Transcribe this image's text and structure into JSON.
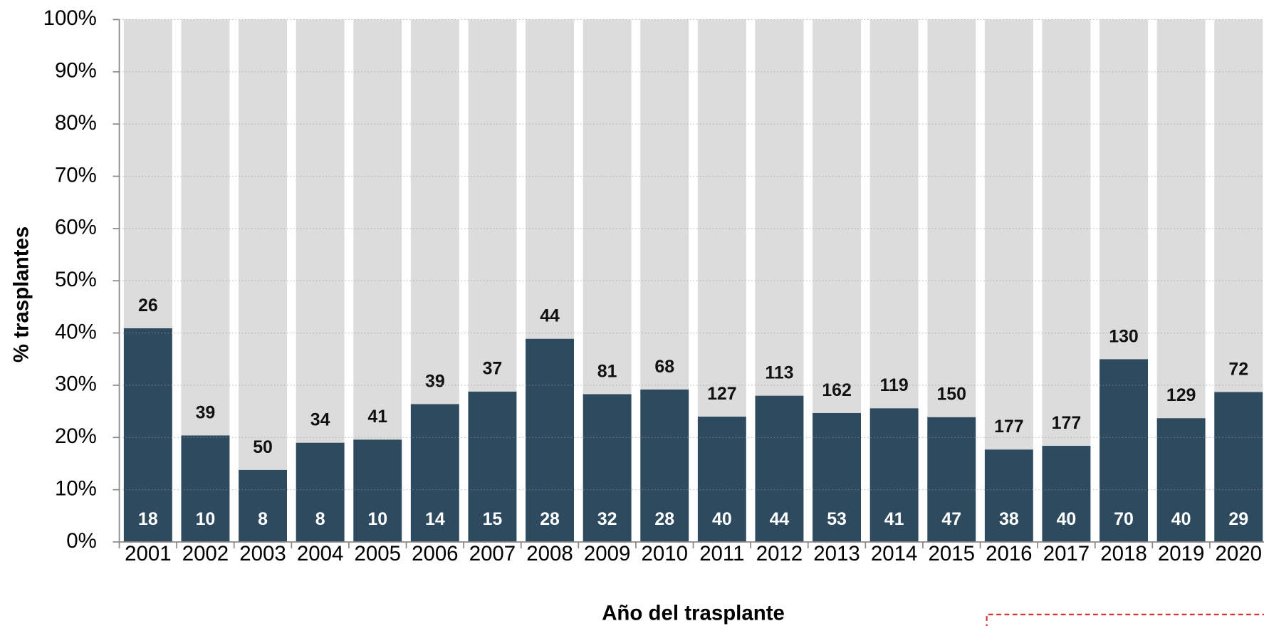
{
  "chart_data": {
    "type": "stacked_bar_100",
    "y_label": "% trasplantes",
    "x_label": "Año del trasplante",
    "categories": [
      "2001",
      "2002",
      "2003",
      "2004",
      "2005",
      "2006",
      "2007",
      "2008",
      "2009",
      "2010",
      "2011",
      "2012",
      "2013",
      "2014",
      "2015",
      "2016",
      "2017",
      "2018",
      "2019",
      "2020"
    ],
    "series": [
      {
        "color": "#2d4a5e",
        "values": [
          40.9,
          20.4,
          13.8,
          19.0,
          19.6,
          26.4,
          28.8,
          38.9,
          28.3,
          29.2,
          24.0,
          28.0,
          24.7,
          25.6,
          23.9,
          17.7,
          18.4,
          35.0,
          23.7,
          28.7
        ],
        "counts": [
          18,
          10,
          8,
          8,
          10,
          14,
          15,
          28,
          32,
          28,
          40,
          44,
          53,
          41,
          47,
          38,
          40,
          70,
          40,
          29
        ]
      },
      {
        "color": "#dcdcdc",
        "values": [
          59.1,
          79.6,
          86.2,
          81.0,
          80.4,
          73.6,
          71.2,
          61.1,
          71.7,
          70.8,
          76.0,
          72.0,
          75.3,
          74.4,
          76.1,
          82.3,
          81.6,
          65.0,
          76.3,
          71.3
        ],
        "counts": [
          26,
          39,
          50,
          34,
          41,
          39,
          37,
          44,
          81,
          68,
          127,
          113,
          162,
          119,
          150,
          177,
          177,
          130,
          129,
          72
        ]
      }
    ],
    "ylim": [
      0,
      100
    ],
    "yticks": [
      {
        "value": 0,
        "label": "0%"
      },
      {
        "value": 10,
        "label": "10%"
      },
      {
        "value": 20,
        "label": "20%"
      },
      {
        "value": 30,
        "label": "30%"
      },
      {
        "value": 40,
        "label": "40%"
      },
      {
        "value": 50,
        "label": "50%"
      },
      {
        "value": 60,
        "label": "60%"
      },
      {
        "value": 70,
        "label": "70%"
      },
      {
        "value": 80,
        "label": "80%"
      },
      {
        "value": 90,
        "label": "90%"
      },
      {
        "value": 100,
        "label": "100%"
      }
    ],
    "grid": true
  }
}
